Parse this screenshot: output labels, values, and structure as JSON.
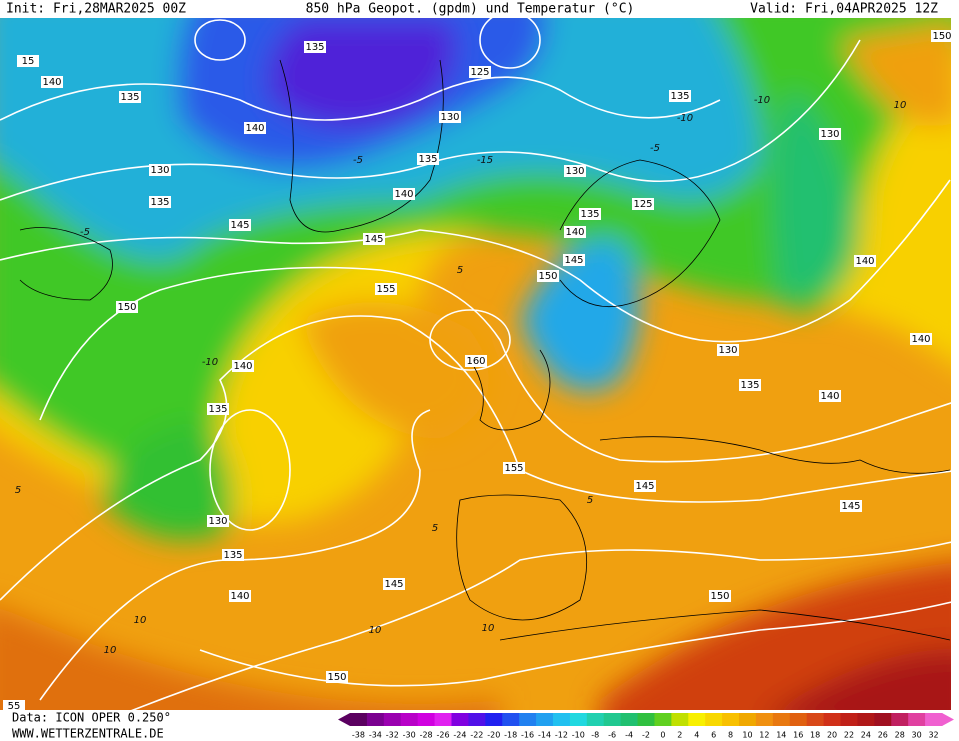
{
  "header": {
    "init": "Init: Fri,28MAR2025 00Z",
    "title": "850 hPa Geopot. (gpdm) und Temperatur (°C)",
    "valid": "Valid: Fri,04APR2025 12Z"
  },
  "footer": {
    "data": "Data: ICON OPER 0.250°",
    "site": "WWW.WETTERZENTRALE.DE"
  },
  "scale": {
    "labels": [
      -38,
      -34,
      -32,
      -30,
      -28,
      -26,
      -24,
      -22,
      -20,
      -18,
      -16,
      -14,
      -12,
      -10,
      -8,
      -6,
      -4,
      -2,
      0,
      2,
      4,
      6,
      8,
      10,
      12,
      14,
      16,
      18,
      20,
      22,
      24,
      26,
      28,
      30,
      32
    ],
    "colors": [
      "#5a0060",
      "#7a0090",
      "#9a00b0",
      "#b800c8",
      "#d000e0",
      "#e020f0",
      "#8000e0",
      "#5010e8",
      "#2020f0",
      "#2050f0",
      "#2080f0",
      "#20a0f0",
      "#20c0f0",
      "#20d8e0",
      "#20d0b0",
      "#20c890",
      "#20c070",
      "#30c040",
      "#60d020",
      "#c0e000",
      "#f8f000",
      "#f8d800",
      "#f8c000",
      "#f0a800",
      "#f09010",
      "#e87810",
      "#e06010",
      "#d84818",
      "#d03018",
      "#c02018",
      "#b01818",
      "#a01020",
      "#c02060",
      "#e040a0",
      "#f060d0"
    ]
  },
  "geopotential_labels": [
    "135",
    "125",
    "140",
    "135",
    "135",
    "130",
    "140",
    "130",
    "130",
    "135",
    "130",
    "135",
    "140",
    "125",
    "135",
    "145",
    "140",
    "145",
    "145",
    "140",
    "150",
    "155",
    "150",
    "140",
    "130",
    "160",
    "140",
    "135",
    "140",
    "135",
    "155",
    "145",
    "145",
    "130",
    "135",
    "145",
    "140",
    "150",
    "150",
    "150",
    "15",
    "55"
  ],
  "temperature_labels": [
    "-10",
    "-15",
    "-10",
    "-5",
    "-5",
    "-10",
    "5",
    "5",
    "10",
    "10",
    "5",
    "10",
    "10",
    "10",
    "5",
    "-5"
  ]
}
